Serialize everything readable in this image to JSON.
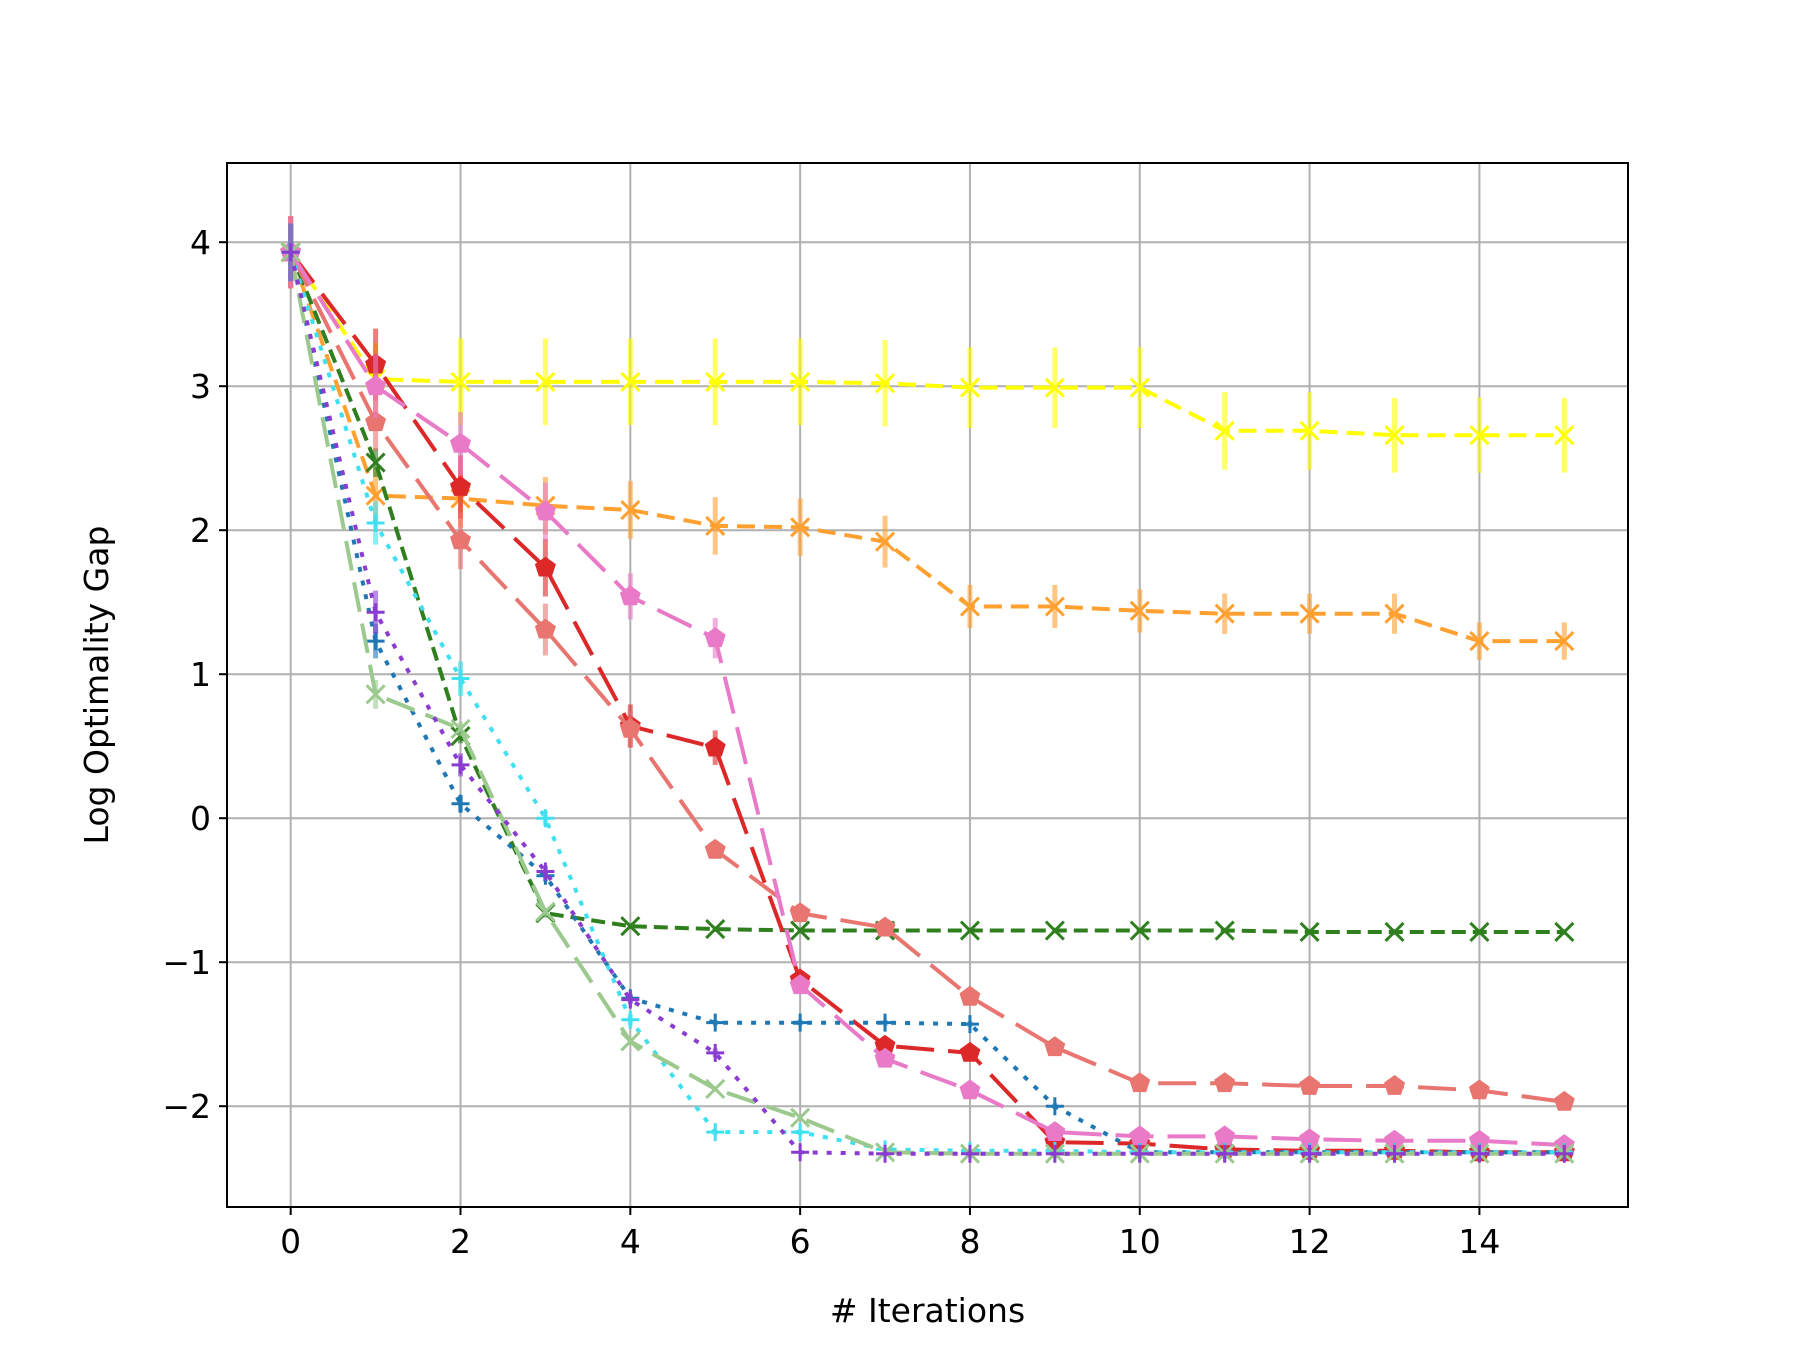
{
  "chart_data": {
    "type": "line",
    "title": "",
    "xlabel": "# Iterations",
    "ylabel": "Log Optimality Gap",
    "xlim": [
      -0.75,
      15.75
    ],
    "ylim": [
      -2.7,
      4.55
    ],
    "xticks": [
      0,
      2,
      4,
      6,
      8,
      10,
      12,
      14
    ],
    "yticks": [
      -2,
      -1,
      0,
      1,
      2,
      3,
      4
    ],
    "xtick_labels": [
      "0",
      "2",
      "4",
      "6",
      "8",
      "10",
      "12",
      "14"
    ],
    "ytick_labels": [
      "−2",
      "−1",
      "0",
      "1",
      "2",
      "3",
      "4"
    ],
    "grid": true,
    "legend": "none",
    "x": [
      0,
      1,
      2,
      3,
      4,
      5,
      6,
      7,
      8,
      9,
      10,
      11,
      12,
      13,
      14,
      15
    ],
    "series": [
      {
        "color": "#FFFF00",
        "marker": "x",
        "dash": "18,9",
        "width": 4,
        "values": [
          3.93,
          3.05,
          3.03,
          3.03,
          3.03,
          3.03,
          3.03,
          3.02,
          2.99,
          2.99,
          2.99,
          2.69,
          2.69,
          2.66,
          2.66,
          2.66
        ],
        "errors": [
          0.25,
          0.25,
          0.3,
          0.3,
          0.3,
          0.3,
          0.3,
          0.3,
          0.28,
          0.28,
          0.28,
          0.27,
          0.27,
          0.26,
          0.26,
          0.26
        ]
      },
      {
        "color": "#FFA030",
        "marker": "x",
        "dash": "18,9",
        "width": 4,
        "values": [
          3.93,
          2.24,
          2.22,
          2.17,
          2.14,
          2.03,
          2.02,
          1.92,
          1.47,
          1.47,
          1.44,
          1.42,
          1.42,
          1.42,
          1.23,
          1.23
        ],
        "errors": [
          0.25,
          0.2,
          0.2,
          0.2,
          0.2,
          0.2,
          0.2,
          0.18,
          0.15,
          0.15,
          0.15,
          0.14,
          0.14,
          0.14,
          0.13,
          0.13
        ]
      },
      {
        "color": "#2F7F1F",
        "marker": "x",
        "dash": "14,7",
        "width": 4,
        "values": [
          3.93,
          2.47,
          0.57,
          -0.66,
          -0.75,
          -0.77,
          -0.78,
          -0.78,
          -0.78,
          -0.78,
          -0.78,
          -0.78,
          -0.79,
          -0.79,
          -0.79,
          -0.79
        ],
        "errors": [
          0.2,
          0.1,
          0.05,
          0.03,
          0.02,
          0.02,
          0.02,
          0.02,
          0.02,
          0.02,
          0.02,
          0.02,
          0.02,
          0.02,
          0.02,
          0.02
        ]
      },
      {
        "color": "#DC2828",
        "marker": "pentagon",
        "dash": "38,14",
        "width": 4,
        "values": [
          3.93,
          3.15,
          2.3,
          1.74,
          0.64,
          0.49,
          -1.12,
          -1.58,
          -1.63,
          -2.25,
          -2.26,
          -2.3,
          -2.31,
          -2.31,
          -2.32,
          -2.32
        ],
        "errors": [
          0.25,
          0.25,
          0.22,
          0.2,
          0.15,
          0.12,
          0.05,
          0.03,
          0.03,
          0.02,
          0.02,
          0.02,
          0.02,
          0.02,
          0.02,
          0.02
        ]
      },
      {
        "color": "#E87570",
        "marker": "pentagon",
        "dash": "38,14",
        "width": 4,
        "values": [
          3.93,
          2.75,
          1.93,
          1.31,
          0.62,
          -0.22,
          -0.66,
          -0.76,
          -1.24,
          -1.59,
          -1.84,
          -1.84,
          -1.86,
          -1.86,
          -1.89,
          -1.97
        ],
        "errors": [
          0.25,
          0.2,
          0.2,
          0.18,
          0.12,
          0.05,
          0.04,
          0.03,
          0.03,
          0.02,
          0.02,
          0.02,
          0.02,
          0.02,
          0.02,
          0.02
        ]
      },
      {
        "color": "#E87AC8",
        "marker": "pentagon",
        "dash": "38,14",
        "width": 4,
        "values": [
          3.93,
          3.0,
          2.6,
          2.13,
          1.54,
          1.25,
          -1.16,
          -1.67,
          -1.89,
          -2.18,
          -2.21,
          -2.21,
          -2.23,
          -2.24,
          -2.24,
          -2.27
        ],
        "errors": [
          0.25,
          0.22,
          0.22,
          0.2,
          0.16,
          0.14,
          0.05,
          0.03,
          0.03,
          0.02,
          0.02,
          0.02,
          0.02,
          0.02,
          0.02,
          0.02
        ]
      },
      {
        "color": "#1F77B4",
        "marker": "plus",
        "dash": "5,9",
        "width": 4,
        "values": [
          3.93,
          1.23,
          0.1,
          -0.4,
          -1.25,
          -1.42,
          -1.42,
          -1.42,
          -1.43,
          -2.0,
          -2.32,
          -2.32,
          -2.32,
          -2.32,
          -2.32,
          -2.32
        ],
        "errors": [
          0.2,
          0.12,
          0.06,
          0.04,
          0.03,
          0.02,
          0.02,
          0.02,
          0.02,
          0.02,
          0.01,
          0.01,
          0.01,
          0.01,
          0.01,
          0.01
        ]
      },
      {
        "color": "#40E0F0",
        "marker": "plus",
        "dash": "5,9",
        "width": 4,
        "values": [
          3.93,
          2.05,
          0.97,
          0.0,
          -1.4,
          -2.18,
          -2.18,
          -2.3,
          -2.31,
          -2.31,
          -2.32,
          -2.32,
          -2.32,
          -2.32,
          -2.32,
          -2.32
        ],
        "errors": [
          0.2,
          0.15,
          0.12,
          0.05,
          0.04,
          0.02,
          0.02,
          0.01,
          0.01,
          0.01,
          0.01,
          0.01,
          0.01,
          0.01,
          0.01,
          0.01
        ]
      },
      {
        "color": "#9BC98E",
        "marker": "x",
        "dash": "30,12",
        "width": 4,
        "values": [
          3.93,
          0.86,
          0.62,
          -0.65,
          -1.55,
          -1.88,
          -2.08,
          -2.32,
          -2.33,
          -2.33,
          -2.33,
          -2.33,
          -2.33,
          -2.33,
          -2.33,
          -2.33
        ],
        "errors": [
          0.2,
          0.1,
          0.05,
          0.03,
          0.02,
          0.02,
          0.02,
          0.01,
          0.01,
          0.01,
          0.01,
          0.01,
          0.01,
          0.01,
          0.01,
          0.01
        ]
      },
      {
        "color": "#8A3CD0",
        "marker": "plus",
        "dash": "5,9",
        "width": 4,
        "values": [
          3.93,
          1.43,
          0.37,
          -0.37,
          -1.26,
          -1.63,
          -2.32,
          -2.33,
          -2.33,
          -2.33,
          -2.33,
          -2.33,
          -2.33,
          -2.33,
          -2.33,
          -2.33
        ],
        "errors": [
          0.2,
          0.15,
          0.08,
          0.04,
          0.03,
          0.03,
          0.01,
          0.01,
          0.01,
          0.01,
          0.01,
          0.01,
          0.01,
          0.01,
          0.01,
          0.01
        ]
      }
    ]
  }
}
